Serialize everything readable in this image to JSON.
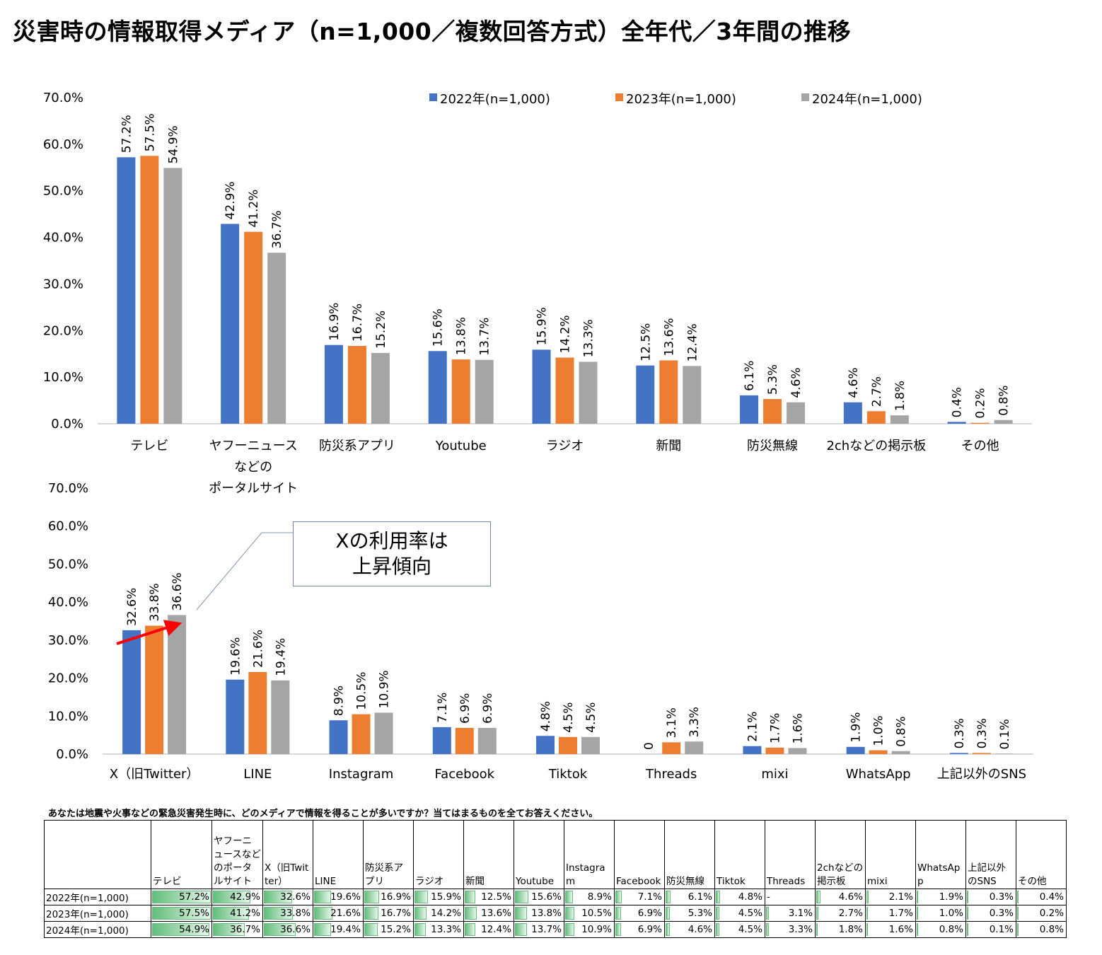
{
  "page_title": "災害時の情報取得メディア（n=1,000／複数回答方式）全年代／3年間の推移",
  "colors": {
    "2022": "#4472c4",
    "2023": "#ed7d31",
    "2024": "#a5a5a5",
    "axis": "#d9d9d9",
    "arrow": "#ff0000",
    "heatmap": "#63be7b"
  },
  "legend": [
    "2022年(n=1,000)",
    "2023年(n=1,000)",
    "2024年(n=1,000)"
  ],
  "callout": {
    "line1": "Xの利用率は",
    "line2": "上昇傾向"
  },
  "chart_data": [
    {
      "type": "bar",
      "title": "",
      "ylim": [
        0,
        70
      ],
      "yticks": [
        "0.0%",
        "10.0%",
        "20.0%",
        "30.0%",
        "40.0%",
        "50.0%",
        "60.0%",
        "70.0%"
      ],
      "categories": [
        "テレビ",
        "ヤフーニュース\nなどの\nポータルサイト",
        "防災系アプリ",
        "Youtube",
        "ラジオ",
        "新聞",
        "防災無線",
        "2chなどの掲示板",
        "その他"
      ],
      "series": [
        {
          "name": "2022年(n=1,000)",
          "values": [
            57.2,
            42.9,
            16.9,
            15.6,
            15.9,
            12.5,
            6.1,
            4.6,
            0.4
          ],
          "labels": [
            "57.2%",
            "42.9%",
            "16.9%",
            "15.6%",
            "15.9%",
            "12.5%",
            "6.1%",
            "4.6%",
            "0.4%"
          ]
        },
        {
          "name": "2023年(n=1,000)",
          "values": [
            57.5,
            41.2,
            16.7,
            13.8,
            14.2,
            13.6,
            5.3,
            2.7,
            0.2
          ],
          "labels": [
            "57.5%",
            "41.2%",
            "16.7%",
            "13.8%",
            "14.2%",
            "13.6%",
            "5.3%",
            "2.7%",
            "0.2%"
          ]
        },
        {
          "name": "2024年(n=1,000)",
          "values": [
            54.9,
            36.7,
            15.2,
            13.7,
            13.3,
            12.4,
            4.6,
            1.8,
            0.8
          ],
          "labels": [
            "54.9%",
            "36.7%",
            "15.2%",
            "13.7%",
            "13.3%",
            "12.4%",
            "4.6%",
            "1.8%",
            "0.8%"
          ]
        }
      ]
    },
    {
      "type": "bar",
      "title": "",
      "ylim": [
        0,
        70
      ],
      "yticks": [
        "0.0%",
        "10.0%",
        "20.0%",
        "30.0%",
        "40.0%",
        "50.0%",
        "60.0%",
        "70.0%"
      ],
      "categories": [
        "X（旧Twitter）",
        "LINE",
        "Instagram",
        "Facebook",
        "Tiktok",
        "Threads",
        "mixi",
        "WhatsApp",
        "上記以外のSNS"
      ],
      "series": [
        {
          "name": "2022年(n=1,000)",
          "values": [
            32.6,
            19.6,
            8.9,
            7.1,
            4.8,
            0,
            2.1,
            1.9,
            0.3
          ],
          "labels": [
            "32.6%",
            "19.6%",
            "8.9%",
            "7.1%",
            "4.8%",
            "0",
            "2.1%",
            "1.9%",
            "0.3%"
          ]
        },
        {
          "name": "2023年(n=1,000)",
          "values": [
            33.8,
            21.6,
            10.5,
            6.9,
            4.5,
            3.1,
            1.7,
            1.0,
            0.3
          ],
          "labels": [
            "33.8%",
            "21.6%",
            "10.5%",
            "6.9%",
            "4.5%",
            "3.1%",
            "1.7%",
            "1.0%",
            "0.3%"
          ]
        },
        {
          "name": "2024年(n=1,000)",
          "values": [
            36.6,
            19.4,
            10.9,
            6.9,
            4.5,
            3.3,
            1.6,
            0.8,
            0.1
          ],
          "labels": [
            "36.6%",
            "19.4%",
            "10.9%",
            "6.9%",
            "4.5%",
            "3.3%",
            "1.6%",
            "0.8%",
            "0.1%"
          ]
        }
      ]
    }
  ],
  "table": {
    "question": "あなたは地震や火事などの緊急災害発生時に、どのメディアで情報を得ることが多いですか？当てはまるものを全てお答えください。",
    "headers": [
      "",
      "テレビ",
      "ヤフーニュースなどのポータルサイト",
      "X（旧Twitter）",
      "LINE",
      "防災系アプリ",
      "ラジオ",
      "新聞",
      "Youtube",
      "Instagram",
      "Facebook",
      "防災無線",
      "Tiktok",
      "Threads",
      "2chなどの掲示板",
      "mixi",
      "WhatsApp",
      "上記以外のSNS",
      "その他"
    ],
    "rows": [
      {
        "label": "2022年(n=1,000)",
        "cells": [
          "57.2%",
          "42.9%",
          "32.6%",
          "19.6%",
          "16.9%",
          "15.9%",
          "12.5%",
          "15.6%",
          "8.9%",
          "7.1%",
          "6.1%",
          "4.8%",
          "-",
          "4.6%",
          "2.1%",
          "1.9%",
          "0.3%",
          "0.4%"
        ],
        "values": [
          57.2,
          42.9,
          32.6,
          19.6,
          16.9,
          15.9,
          12.5,
          15.6,
          8.9,
          7.1,
          6.1,
          4.8,
          0,
          4.6,
          2.1,
          1.9,
          0.3,
          0.4
        ]
      },
      {
        "label": "2023年(n=1,000)",
        "cells": [
          "57.5%",
          "41.2%",
          "33.8%",
          "21.6%",
          "16.7%",
          "14.2%",
          "13.6%",
          "13.8%",
          "10.5%",
          "6.9%",
          "5.3%",
          "4.5%",
          "3.1%",
          "2.7%",
          "1.7%",
          "1.0%",
          "0.3%",
          "0.2%"
        ],
        "values": [
          57.5,
          41.2,
          33.8,
          21.6,
          16.7,
          14.2,
          13.6,
          13.8,
          10.5,
          6.9,
          5.3,
          4.5,
          3.1,
          2.7,
          1.7,
          1.0,
          0.3,
          0.2
        ]
      },
      {
        "label": "2024年(n=1,000)",
        "cells": [
          "54.9%",
          "36.7%",
          "36.6%",
          "19.4%",
          "15.2%",
          "13.3%",
          "12.4%",
          "13.7%",
          "10.9%",
          "6.9%",
          "4.6%",
          "4.5%",
          "3.3%",
          "1.8%",
          "1.6%",
          "0.8%",
          "0.1%",
          "0.8%"
        ],
        "values": [
          54.9,
          36.7,
          36.6,
          19.4,
          15.2,
          13.3,
          12.4,
          13.7,
          10.9,
          6.9,
          4.6,
          4.5,
          3.3,
          1.8,
          1.6,
          0.8,
          0.1,
          0.8
        ]
      }
    ]
  }
}
